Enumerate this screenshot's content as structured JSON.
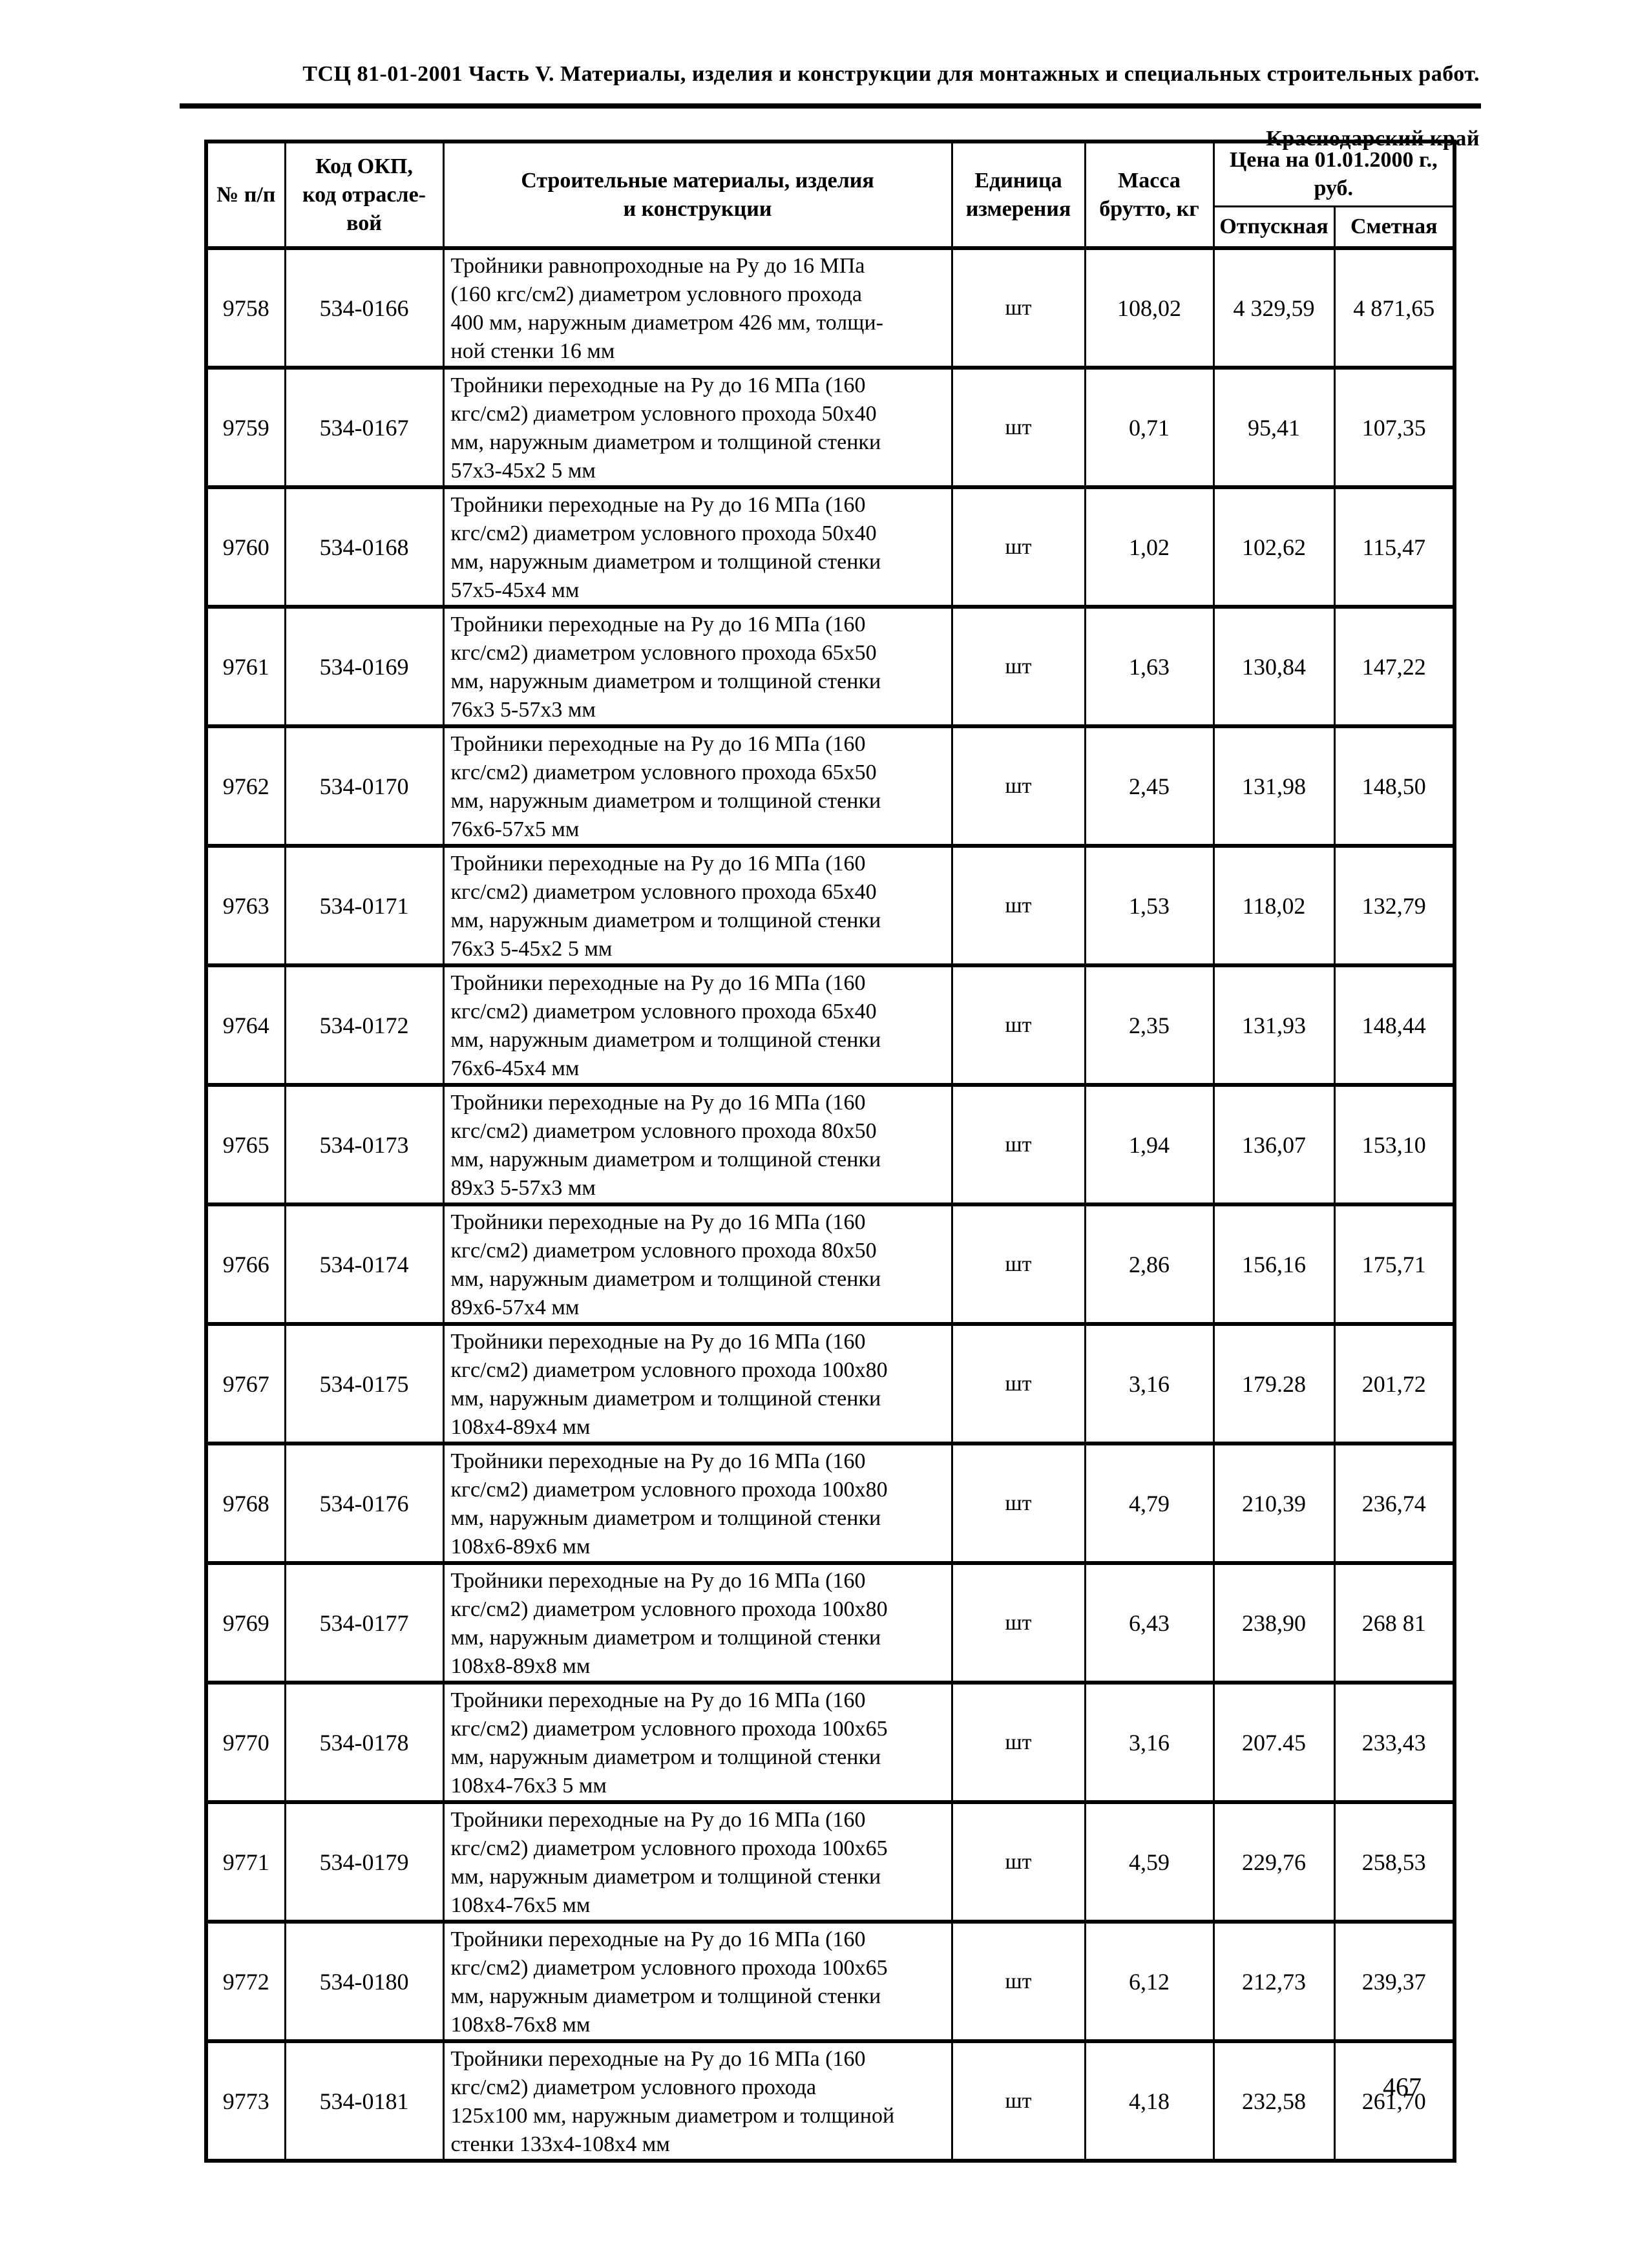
{
  "page_header": {
    "line1": "ТСЦ 81-01-2001 Часть V. Материалы, изделия и конструкции для монтажных и специальных строительных работ.",
    "line2": "Краснодарский край"
  },
  "table": {
    "headers": {
      "num": "№ п/п",
      "code": "Код ОКП,\nкод отрасле-\nвой",
      "materials": "Строительные материалы, изделия\nи конструкции",
      "unit": "Единица\nизмерения",
      "mass": "Масса\nбрутто, кг",
      "price_group": "Цена на 01.01.2000 г.,\nруб.",
      "price_release": "Отпускная",
      "price_estimate": "Сметная"
    },
    "rows": [
      {
        "num": "9758",
        "code": "534-0166",
        "desc": "Тройники равнопроходные на Ру до 16 МПа\n(160 кгс/см2) диаметром условного прохода\n400 мм, наружным диаметром 426 мм, толщи-\nной стенки 16 мм",
        "unit": "шт",
        "mass": "108,02",
        "price_release": "4 329,59",
        "price_estimate": "4 871,65"
      },
      {
        "num": "9759",
        "code": "534-0167",
        "desc": "Тройники переходные на Ру до 16 МПа (160\nкгс/см2) диаметром условного прохода 50х40\nмм, наружным диаметром и толщиной стенки\n57х3-45х2 5 мм",
        "unit": "шт",
        "mass": "0,71",
        "price_release": "95,41",
        "price_estimate": "107,35"
      },
      {
        "num": "9760",
        "code": "534-0168",
        "desc": "Тройники переходные на Ру до 16 МПа (160\nкгс/см2) диаметром условного прохода 50х40\nмм, наружным диаметром и толщиной стенки\n57х5-45х4 мм",
        "unit": "шт",
        "mass": "1,02",
        "price_release": "102,62",
        "price_estimate": "115,47"
      },
      {
        "num": "9761",
        "code": "534-0169",
        "desc": "Тройники переходные на Ру до 16 МПа (160\nкгс/см2) диаметром условного прохода 65х50\nмм, наружным диаметром и толщиной стенки\n76х3 5-57х3 мм",
        "unit": "шт",
        "mass": "1,63",
        "price_release": "130,84",
        "price_estimate": "147,22"
      },
      {
        "num": "9762",
        "code": "534-0170",
        "desc": "Тройники переходные на Ру до 16 МПа (160\nкгс/см2) диаметром условного прохода 65х50\nмм, наружным диаметром и толщиной стенки\n76х6-57х5 мм",
        "unit": "шт",
        "mass": "2,45",
        "price_release": "131,98",
        "price_estimate": "148,50"
      },
      {
        "num": "9763",
        "code": "534-0171",
        "desc": "Тройники переходные на Ру до 16 МПа (160\nкгс/см2) диаметром условного прохода 65х40\nмм, наружным диаметром и толщиной стенки\n76х3 5-45х2 5 мм",
        "unit": "шт",
        "mass": "1,53",
        "price_release": "118,02",
        "price_estimate": "132,79"
      },
      {
        "num": "9764",
        "code": "534-0172",
        "desc": "Тройники переходные на Ру до 16 МПа (160\nкгс/см2) диаметром условного прохода 65х40\nмм, наружным диаметром и толщиной стенки\n76х6-45х4 мм",
        "unit": "шт",
        "mass": "2,35",
        "price_release": "131,93",
        "price_estimate": "148,44"
      },
      {
        "num": "9765",
        "code": "534-0173",
        "desc": "Тройники переходные на Ру до 16 МПа (160\nкгс/см2) диаметром условного прохода 80х50\nмм, наружным диаметром и толщиной стенки\n89х3 5-57х3 мм",
        "unit": "шт",
        "mass": "1,94",
        "price_release": "136,07",
        "price_estimate": "153,10"
      },
      {
        "num": "9766",
        "code": "534-0174",
        "desc": "Тройники переходные на Ру до 16 МПа (160\nкгс/см2) диаметром условного прохода 80х50\nмм, наружным диаметром и толщиной стенки\n89х6-57х4 мм",
        "unit": "шт",
        "mass": "2,86",
        "price_release": "156,16",
        "price_estimate": "175,71"
      },
      {
        "num": "9767",
        "code": "534-0175",
        "desc": "Тройники переходные на Ру до 16 МПа (160\nкгс/см2) диаметром условного прохода 100х80\nмм, наружным диаметром и толщиной стенки\n108х4-89х4 мм",
        "unit": "шт",
        "mass": "3,16",
        "price_release": "179.28",
        "price_estimate": "201,72"
      },
      {
        "num": "9768",
        "code": "534-0176",
        "desc": "Тройники переходные на Ру до 16 МПа (160\nкгс/см2) диаметром условного прохода 100х80\nмм, наружным диаметром и толщиной стенки\n108х6-89х6 мм",
        "unit": "шт",
        "mass": "4,79",
        "price_release": "210,39",
        "price_estimate": "236,74"
      },
      {
        "num": "9769",
        "code": "534-0177",
        "desc": "Тройники переходные на Ру до 16 МПа (160\nкгс/см2) диаметром условного прохода 100х80\nмм, наружным диаметром и толщиной стенки\n108х8-89х8 мм",
        "unit": "шт",
        "mass": "6,43",
        "price_release": "238,90",
        "price_estimate": "268 81"
      },
      {
        "num": "9770",
        "code": "534-0178",
        "desc": "Тройники переходные на Ру до 16 МПа (160\nкгс/см2) диаметром условного прохода 100х65\nмм, наружным диаметром и толщиной стенки\n108х4-76х3 5 мм",
        "unit": "шт",
        "mass": "3,16",
        "price_release": "207.45",
        "price_estimate": "233,43"
      },
      {
        "num": "9771",
        "code": "534-0179",
        "desc": "Тройники переходные на Ру до 16 МПа (160\nкгс/см2) диаметром условного прохода 100х65\nмм, наружным диаметром и толщиной стенки\n108х4-76х5 мм",
        "unit": "шт",
        "mass": "4,59",
        "price_release": "229,76",
        "price_estimate": "258,53"
      },
      {
        "num": "9772",
        "code": "534-0180",
        "desc": "Тройники переходные на Ру до 16 МПа (160\nкгс/см2) диаметром условного прохода 100х65\nмм, наружным диаметром и толщиной стенки\n108х8-76х8 мм",
        "unit": "шт",
        "mass": "6,12",
        "price_release": "212,73",
        "price_estimate": "239,37"
      },
      {
        "num": "9773",
        "code": "534-0181",
        "desc": "Тройники переходные на Ру до 16 МПа (160\nкгс/см2) диаметром условного прохода\n125х100 мм, наружным диаметром и толщиной\nстенки 133х4-108х4 мм",
        "unit": "шт",
        "mass": "4,18",
        "price_release": "232,58",
        "price_estimate": "261,70"
      }
    ]
  },
  "page_number": "467"
}
